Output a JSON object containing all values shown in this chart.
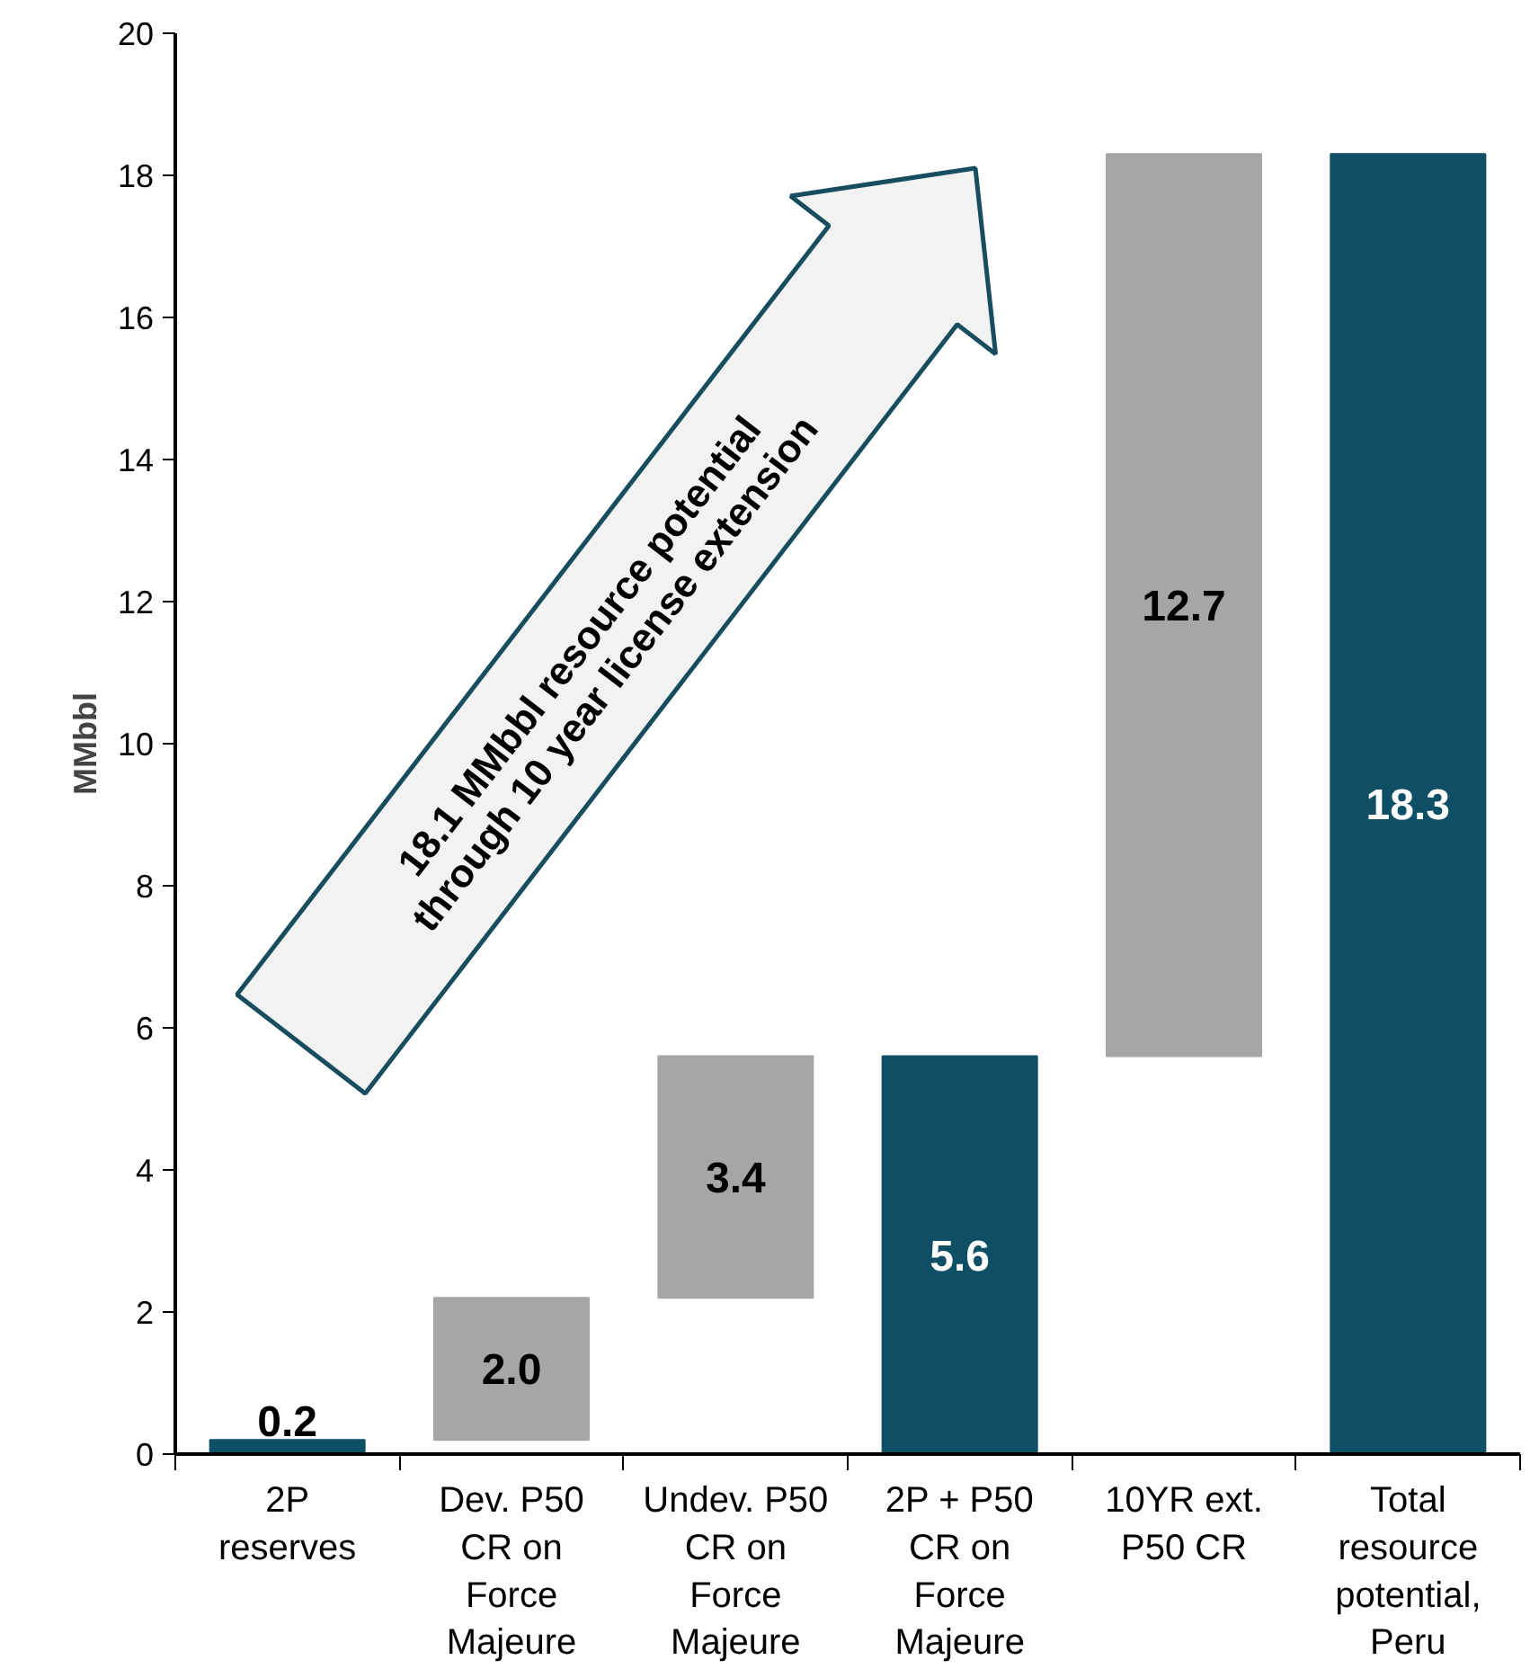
{
  "chart_data": {
    "type": "bar",
    "ylabel": "MMbbl",
    "categories": [
      "2P reserves",
      "Dev. P50 CR on Force Majeure",
      "Undev. P50 CR on Force Majeure",
      "2P + P50 CR on Force Majeure",
      "10YR ext. P50 CR",
      "Total resource potential, Peru"
    ],
    "values": [
      0.2,
      2.0,
      3.4,
      5.6,
      12.7,
      18.3
    ],
    "base": [
      0,
      0.2,
      2.2,
      0,
      5.6,
      0
    ],
    "colors": [
      "#0e4f66",
      "#a6a6a6",
      "#a6a6a6",
      "#0e4f66",
      "#a6a6a6",
      "#0e4f66"
    ],
    "ylim": [
      0,
      20
    ],
    "yticks": [
      0,
      2,
      4,
      6,
      8,
      10,
      12,
      14,
      16,
      18,
      20
    ],
    "value_labels": [
      "0.2",
      "2.0",
      "3.4",
      "5.6",
      "12.7",
      "18.3"
    ],
    "annotations": [
      "18.1 MMbbl resource potential\nthrough 10 year license extension"
    ]
  }
}
